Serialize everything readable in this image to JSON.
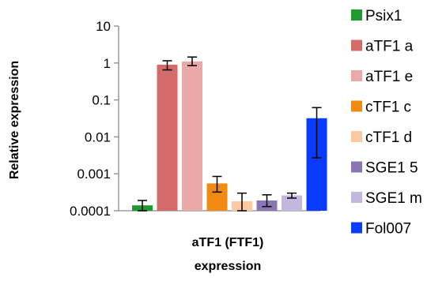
{
  "chart_data": {
    "type": "bar",
    "scale": "log",
    "ylabel": "Relative expression",
    "xlabel": [
      "aTF1 (FTF1)",
      "expression"
    ],
    "ylim": [
      0.0001,
      10
    ],
    "yticks": [
      {
        "value": 10,
        "label": "10"
      },
      {
        "value": 1,
        "label": "1"
      },
      {
        "value": 0.1,
        "label": "0.1"
      },
      {
        "value": 0.01,
        "label": "0.01"
      },
      {
        "value": 0.001,
        "label": "0.001"
      },
      {
        "value": 0.0001,
        "label": "0.0001"
      }
    ],
    "grid": false,
    "legend_position": "right",
    "series": [
      {
        "name": "Psix1",
        "color": "#1e9a2f",
        "value": 0.00014,
        "err_low": 0.0001,
        "err_high": 0.00019
      },
      {
        "name": "aTF1 a",
        "color": "#d46a6a",
        "value": 0.9,
        "err_low": 0.65,
        "err_high": 1.15
      },
      {
        "name": "aTF1 e",
        "color": "#e8a9a7",
        "value": 1.1,
        "err_low": 0.85,
        "err_high": 1.45
      },
      {
        "name": "cTF1 c",
        "color": "#f08a12",
        "value": 0.00055,
        "err_low": 0.00032,
        "err_high": 0.00085
      },
      {
        "name": "cTF1 d",
        "color": "#fcc9a0",
        "value": 0.00018,
        "err_low": 0.0001,
        "err_high": 0.0003
      },
      {
        "name": "SGE1 5",
        "color": "#8a76b3",
        "value": 0.00019,
        "err_low": 0.00013,
        "err_high": 0.00027
      },
      {
        "name": "SGE1 m",
        "color": "#c2b8dd",
        "value": 0.00026,
        "err_low": 0.00022,
        "err_high": 0.0003
      },
      {
        "name": "Fol007",
        "color": "#0a3cff",
        "value": 0.032,
        "err_low": 0.0027,
        "err_high": 0.062
      }
    ]
  }
}
